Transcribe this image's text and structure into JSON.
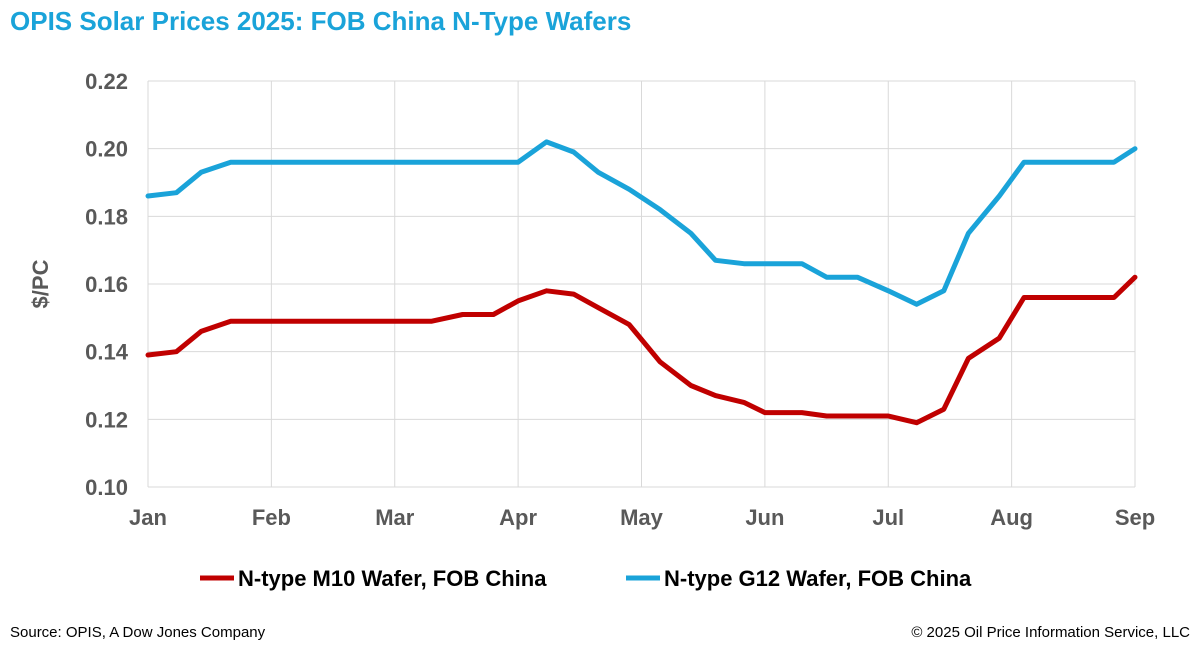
{
  "header": {
    "title": "OPIS Solar Prices 2025: FOB China N-Type Wafers"
  },
  "footer": {
    "source": "Source: OPIS, A Dow Jones Company",
    "copyright": "© 2025 Oil Price Information Service, LLC"
  },
  "colors": {
    "title": "#1AA3D9",
    "m10": "#C00000",
    "g12": "#1AA3D9",
    "grid": "#D9D9D9",
    "tick_text": "#595959"
  },
  "chart_data": {
    "type": "line",
    "title": "OPIS Solar Prices 2025: FOB China N-Type Wafers",
    "xlabel": "",
    "ylabel": "$/PC",
    "x_tick_labels": [
      "Jan",
      "Feb",
      "Mar",
      "Apr",
      "May",
      "Jun",
      "Jul",
      "Aug",
      "Sep"
    ],
    "x_range_months": [
      0,
      8
    ],
    "ylim": [
      0.1,
      0.22
    ],
    "y_ticks": [
      "0.22",
      "0.20",
      "0.18",
      "0.16",
      "0.14",
      "0.12",
      "0.10"
    ],
    "y_tick_values": [
      0.22,
      0.2,
      0.18,
      0.16,
      0.14,
      0.12,
      0.1
    ],
    "grid": true,
    "legend_position": "bottom",
    "series": [
      {
        "name": "N-type M10 Wafer, FOB China",
        "color": "#C00000",
        "x_months": [
          0,
          0.23,
          0.43,
          0.67,
          1.0,
          1.3,
          1.6,
          2.0,
          2.3,
          2.55,
          2.8,
          3.0,
          3.23,
          3.45,
          3.65,
          3.9,
          4.15,
          4.4,
          4.6,
          4.83,
          5.0,
          5.3,
          5.5,
          5.75,
          6.0,
          6.23,
          6.45,
          6.65,
          6.9,
          7.1,
          7.83,
          8.0
        ],
        "values": [
          0.139,
          0.14,
          0.146,
          0.149,
          0.149,
          0.149,
          0.149,
          0.149,
          0.149,
          0.151,
          0.151,
          0.155,
          0.158,
          0.157,
          0.153,
          0.148,
          0.137,
          0.13,
          0.127,
          0.125,
          0.122,
          0.122,
          0.121,
          0.121,
          0.121,
          0.119,
          0.123,
          0.138,
          0.144,
          0.156,
          0.156,
          0.162
        ]
      },
      {
        "name": "N-type G12 Wafer, FOB China",
        "color": "#1AA3D9",
        "x_months": [
          0,
          0.23,
          0.43,
          0.67,
          1.0,
          1.3,
          1.6,
          2.0,
          2.3,
          2.6,
          3.0,
          3.23,
          3.45,
          3.65,
          3.9,
          4.15,
          4.4,
          4.6,
          4.83,
          5.0,
          5.3,
          5.5,
          5.75,
          6.0,
          6.23,
          6.45,
          6.65,
          6.9,
          7.1,
          7.83,
          8.0
        ],
        "values": [
          0.186,
          0.187,
          0.193,
          0.196,
          0.196,
          0.196,
          0.196,
          0.196,
          0.196,
          0.196,
          0.196,
          0.202,
          0.199,
          0.193,
          0.188,
          0.182,
          0.175,
          0.167,
          0.166,
          0.166,
          0.166,
          0.162,
          0.162,
          0.158,
          0.154,
          0.158,
          0.175,
          0.186,
          0.196,
          0.196,
          0.2
        ]
      }
    ]
  }
}
